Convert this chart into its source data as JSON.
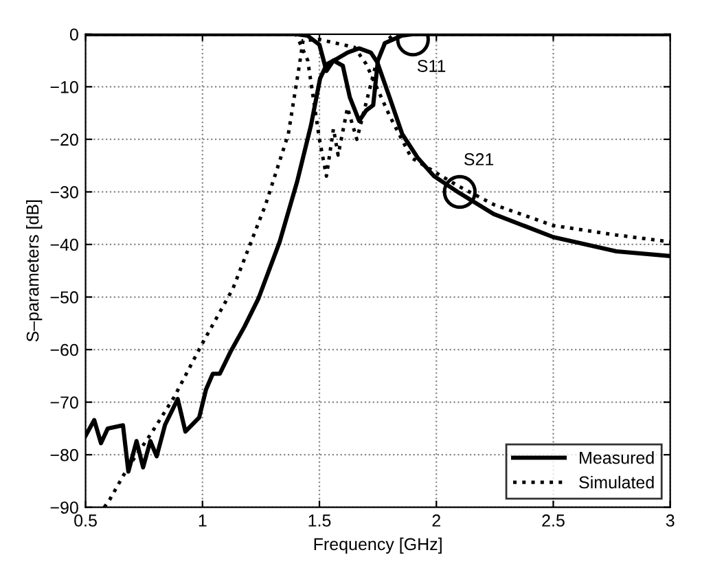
{
  "chart_data": {
    "type": "line",
    "xlabel": "Frequency [GHz]",
    "ylabel": "S–parameters [dB]",
    "xlim": [
      0.5,
      3
    ],
    "ylim": [
      -90,
      0
    ],
    "xticks": [
      0.5,
      1,
      1.5,
      2,
      2.5,
      3
    ],
    "yticks": [
      -90,
      -80,
      -70,
      -60,
      -50,
      -40,
      -30,
      -20,
      -10,
      0
    ],
    "grid": true,
    "legend": "bottom right",
    "marker": "none",
    "series": [
      {
        "name": "Measured",
        "color": "#000000",
        "line_style": "solid",
        "x": [
          0.5,
          0.537,
          0.566,
          0.595,
          0.66,
          0.683,
          0.718,
          0.746,
          0.777,
          0.804,
          0.84,
          0.894,
          0.927,
          0.986,
          1.015,
          1.044,
          1.074,
          1.12,
          1.18,
          1.24,
          1.33,
          1.405,
          1.464,
          1.503,
          1.532,
          1.57,
          1.62,
          1.67,
          1.72,
          1.747,
          1.8,
          1.854,
          1.92,
          1.99,
          2.098,
          2.245,
          2.5,
          2.77,
          3.0
        ],
        "values": [
          -76.4,
          -73.4,
          -77.8,
          -75,
          -74.4,
          -83.2,
          -77.4,
          -82.4,
          -77.4,
          -80.3,
          -74.3,
          -69.4,
          -75.6,
          -72.9,
          -67.6,
          -64.6,
          -64.6,
          -60.4,
          -55.6,
          -50.2,
          -39.5,
          -28,
          -17.3,
          -8.4,
          -5.7,
          -4.8,
          -3.5,
          -2.7,
          -3.5,
          -5.3,
          -12,
          -19,
          -23.5,
          -27,
          -30.2,
          -34.2,
          -38.6,
          -41.3,
          -42.2
        ]
      },
      {
        "color": "#000000",
        "line_style": "solid",
        "x": [
          0.5,
          1.0,
          1.4,
          1.45,
          1.5,
          1.53,
          1.56,
          1.6,
          1.63,
          1.67,
          1.7,
          1.73,
          1.75,
          1.78,
          1.85,
          1.9,
          2.5,
          3.0
        ],
        "values": [
          0,
          0,
          0,
          -0.3,
          -2,
          -7,
          -5,
          -6,
          -12,
          -16.5,
          -14.5,
          -13.5,
          -5,
          -1.7,
          -0.3,
          0,
          0,
          0
        ]
      },
      {
        "name": "Simulated",
        "color": "#000000",
        "line_style": "dotted",
        "x": [
          0.58,
          0.605,
          0.683,
          0.78,
          0.879,
          0.996,
          1.13,
          1.27,
          1.367,
          1.415,
          1.43,
          1.5,
          1.6,
          1.65,
          1.7,
          1.8,
          1.893,
          2.09,
          2.245,
          2.5,
          2.77,
          3.0
        ],
        "values": [
          -90,
          -88.4,
          -82.3,
          -76,
          -69,
          -59.1,
          -48.4,
          -32.4,
          -19,
          -5.7,
          -1.2,
          -1,
          -2,
          -2.5,
          -5.7,
          -15.5,
          -23.5,
          -28.8,
          -32.4,
          -36.4,
          -38.2,
          -39.5
        ]
      },
      {
        "color": "#000000",
        "line_style": "dotted",
        "x": [
          0.5,
          1.0,
          1.4,
          1.45,
          1.5,
          1.53,
          1.56,
          1.58,
          1.62,
          1.66,
          1.7,
          1.74,
          1.78,
          1.82,
          2.5,
          3.0
        ],
        "values": [
          0,
          0,
          0,
          -5,
          -20,
          -27,
          -18,
          -23,
          -14,
          -20,
          -13,
          -6,
          -1.5,
          0,
          0,
          0
        ]
      }
    ],
    "annotations": [
      {
        "text": "S11",
        "x": 1.9,
        "y": -1
      },
      {
        "text": "S21",
        "x": 2.1,
        "y": -30
      }
    ]
  }
}
